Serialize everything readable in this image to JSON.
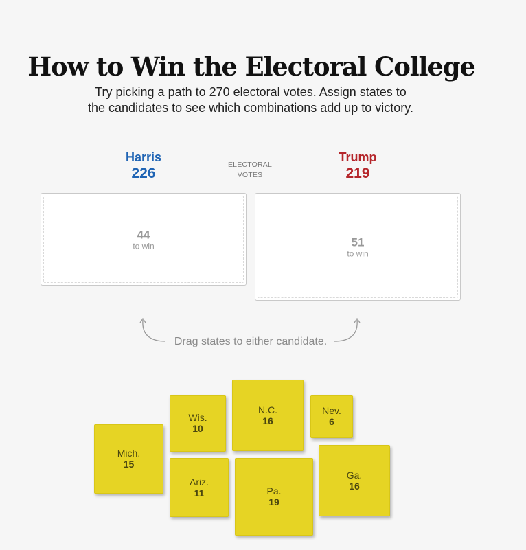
{
  "title": "How to Win the Electoral College",
  "intro": "Try picking a path to 270 electoral votes. Assign states to the candidates to see which combinations add up to victory.",
  "electoral_votes_label": {
    "line1": "ELECTORAL",
    "line2": "VOTES"
  },
  "candidates": {
    "harris": {
      "name": "Harris",
      "votes": "226",
      "needed": "44",
      "to_win_label": "to win",
      "color": "#1f64b4"
    },
    "trump": {
      "name": "Trump",
      "votes": "219",
      "needed": "51",
      "to_win_label": "to win",
      "color": "#b5262b"
    }
  },
  "drag_hint": "Drag states to either candidate.",
  "state_color": "#e6d424",
  "states": [
    {
      "id": "mich",
      "name": "Mich.",
      "votes": "15"
    },
    {
      "id": "wis",
      "name": "Wis.",
      "votes": "10"
    },
    {
      "id": "nc",
      "name": "N.C.",
      "votes": "16"
    },
    {
      "id": "nev",
      "name": "Nev.",
      "votes": "6"
    },
    {
      "id": "ariz",
      "name": "Ariz.",
      "votes": "11"
    },
    {
      "id": "pa",
      "name": "Pa.",
      "votes": "19"
    },
    {
      "id": "ga",
      "name": "Ga.",
      "votes": "16"
    }
  ]
}
